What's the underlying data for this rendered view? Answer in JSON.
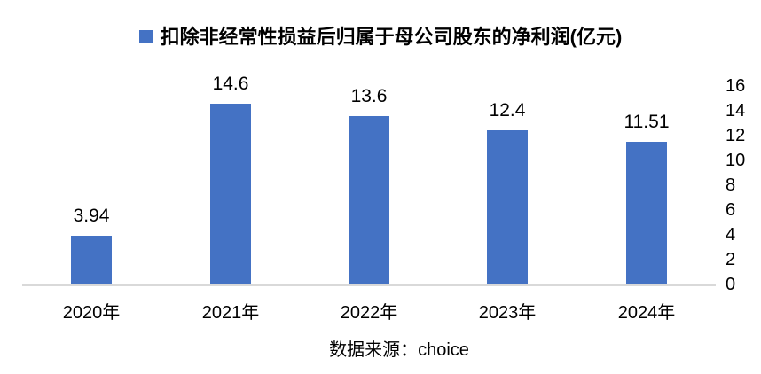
{
  "chart_data": {
    "type": "bar",
    "title": "扣除非经常性损益后归属于母公司股东的净利润(亿元)",
    "categories": [
      "2020年",
      "2021年",
      "2022年",
      "2023年",
      "2024年"
    ],
    "values": [
      3.94,
      14.6,
      13.6,
      12.4,
      11.51
    ],
    "value_labels": [
      "3.94",
      "14.6",
      "13.6",
      "12.4",
      "11.51"
    ],
    "ylim": [
      0,
      16
    ],
    "yticks": [
      0,
      2,
      4,
      6,
      8,
      10,
      12,
      14,
      16
    ],
    "yaxis_side": "right",
    "legend_position": "top-center",
    "grid": false,
    "xlabel": "",
    "ylabel": "",
    "bar_color": "#4472C4",
    "axis_line_color": "#D9D9D9",
    "text_color": "#000000"
  },
  "legend": {
    "label": "扣除非经常性损益后归属于母公司股东的净利润(亿元)"
  },
  "footer": {
    "source_note": "数据来源：choice"
  }
}
